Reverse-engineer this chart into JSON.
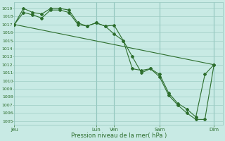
{
  "bg_color": "#c8eae4",
  "grid_color": "#9dccc4",
  "line_color": "#2d6e2d",
  "xlabel": "Pression niveau de la mer( hPa )",
  "ylim": [
    1004.5,
    1019.8
  ],
  "yticks": [
    1005,
    1006,
    1007,
    1008,
    1009,
    1010,
    1011,
    1012,
    1013,
    1014,
    1015,
    1016,
    1017,
    1018,
    1019
  ],
  "day_labels": [
    "Jeu",
    "Lun",
    "Ven",
    "Sam",
    "Dim"
  ],
  "day_positions": [
    0.5,
    5.0,
    6.0,
    8.5,
    11.5
  ],
  "vline_positions": [
    0.5,
    5.0,
    6.0,
    8.5,
    11.5
  ],
  "xlim": [
    0.5,
    12.0
  ],
  "line1_x": [
    0.5,
    1.0,
    1.5,
    2.0,
    2.5,
    3.0,
    3.5,
    4.0,
    4.5,
    5.0,
    5.5,
    6.0,
    6.5,
    7.0,
    7.5,
    8.0,
    8.5,
    9.0,
    9.5,
    10.0,
    10.5,
    11.0,
    11.5
  ],
  "line1_y": [
    1017.0,
    1019.0,
    1018.5,
    1018.3,
    1019.0,
    1019.0,
    1018.8,
    1017.2,
    1016.8,
    1017.2,
    1016.8,
    1016.9,
    1015.0,
    1013.0,
    1011.0,
    1011.5,
    1010.5,
    1008.2,
    1007.0,
    1006.0,
    1005.2,
    1005.2,
    1012.0
  ],
  "line2_x": [
    0.5,
    1.0,
    1.5,
    2.0,
    2.5,
    3.0,
    3.5,
    4.0,
    4.5,
    5.0,
    5.5,
    6.0,
    6.5,
    7.0,
    7.5,
    8.0,
    8.5,
    9.0,
    9.5,
    10.0,
    10.5,
    11.0,
    11.5
  ],
  "line2_y": [
    1017.0,
    1018.5,
    1018.2,
    1017.8,
    1018.8,
    1018.8,
    1018.5,
    1017.0,
    1016.8,
    1017.2,
    1016.8,
    1015.8,
    1015.0,
    1011.5,
    1011.3,
    1011.5,
    1010.8,
    1008.5,
    1007.2,
    1006.5,
    1005.5,
    1010.8,
    1012.0
  ],
  "line3_x": [
    0.5,
    11.5
  ],
  "line3_y": [
    1017.0,
    1012.0
  ]
}
